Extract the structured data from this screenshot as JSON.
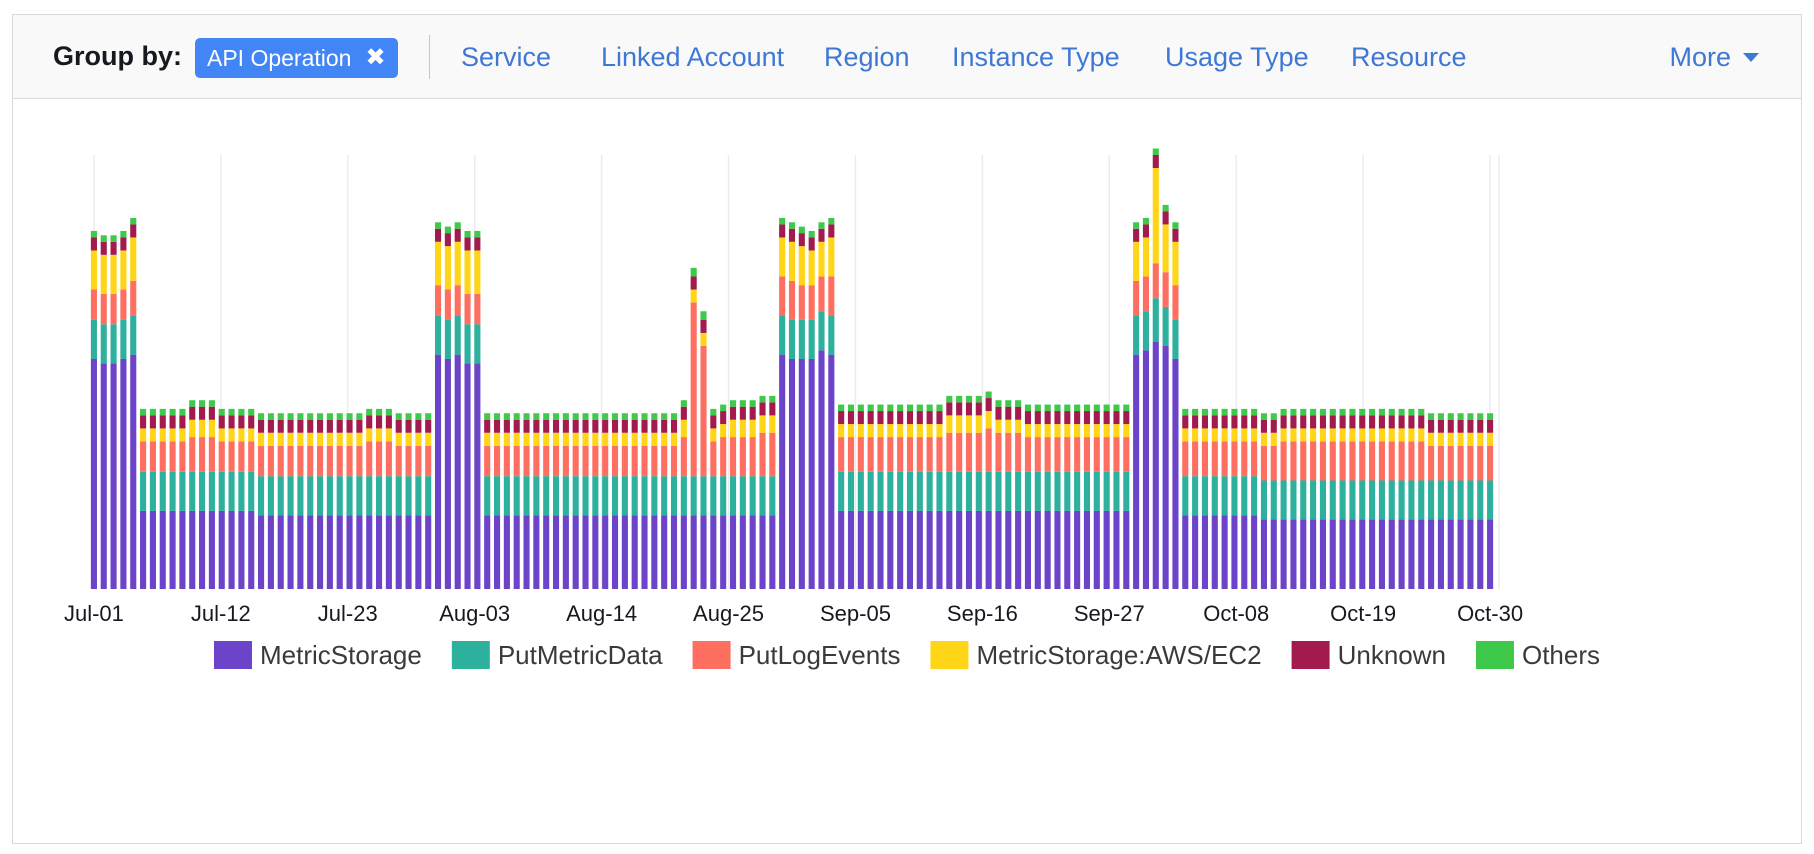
{
  "toolbar": {
    "group_label": "Group by:",
    "active_chip": "API Operation",
    "links": [
      "Service",
      "Linked Account",
      "Region",
      "Instance Type",
      "Usage Type",
      "Resource"
    ],
    "more_label": "More"
  },
  "colors": {
    "accent": "#4285f4",
    "link": "#3f78d4",
    "series": [
      "#6c44c9",
      "#2eb09e",
      "#ff6f61",
      "#ffd617",
      "#a31b4e",
      "#3ec94b"
    ]
  },
  "chart_data": {
    "type": "bar",
    "stacked": true,
    "grid": true,
    "legend_position": "bottom",
    "x_tick_labels": [
      "Jul-01",
      "Jul-12",
      "Jul-23",
      "Aug-03",
      "Aug-14",
      "Aug-25",
      "Sep-05",
      "Sep-16",
      "Sep-27",
      "Oct-08",
      "Oct-19",
      "Oct-30"
    ],
    "ylim": [
      0,
      100
    ],
    "series": [
      {
        "name": "MetricStorage",
        "color": "#6c44c9",
        "values": [
          53,
          52,
          52,
          53,
          54,
          18,
          18,
          18,
          18,
          18,
          18,
          18,
          18,
          18,
          18,
          18,
          18,
          17,
          17,
          17,
          17,
          17,
          17,
          17,
          17,
          17,
          17,
          17,
          17,
          17,
          17,
          17,
          17,
          17,
          17,
          54,
          53,
          54,
          52,
          52,
          17,
          17,
          17,
          17,
          17,
          17,
          17,
          17,
          17,
          17,
          17,
          17,
          17,
          17,
          17,
          17,
          17,
          17,
          17,
          17,
          17,
          17,
          17,
          17,
          17,
          17,
          17,
          17,
          17,
          17,
          54,
          53,
          53,
          53,
          55,
          54,
          18,
          18,
          18,
          18,
          18,
          18,
          18,
          18,
          18,
          18,
          18,
          18,
          18,
          18,
          18,
          18,
          18,
          18,
          18,
          18,
          18,
          18,
          18,
          18,
          18,
          18,
          18,
          18,
          18,
          18,
          54,
          55,
          57,
          56,
          53,
          17,
          17,
          17,
          17,
          17,
          17,
          17,
          17,
          16,
          16,
          16,
          16,
          16,
          16,
          16,
          16,
          16,
          16,
          16,
          16,
          16,
          16,
          16,
          16,
          16,
          16,
          16,
          16,
          16,
          16,
          16,
          16
        ]
      },
      {
        "name": "PutMetricData",
        "color": "#2eb09e",
        "values": [
          9,
          9,
          9,
          9,
          9,
          9,
          9,
          9,
          9,
          9,
          9,
          9,
          9,
          9,
          9,
          9,
          9,
          9,
          9,
          9,
          9,
          9,
          9,
          9,
          9,
          9,
          9,
          9,
          9,
          9,
          9,
          9,
          9,
          9,
          9,
          9,
          9,
          9,
          9,
          9,
          9,
          9,
          9,
          9,
          9,
          9,
          9,
          9,
          9,
          9,
          9,
          9,
          9,
          9,
          9,
          9,
          9,
          9,
          9,
          9,
          9,
          9,
          9,
          9,
          9,
          9,
          9,
          9,
          9,
          9,
          9,
          9,
          9,
          9,
          9,
          9,
          9,
          9,
          9,
          9,
          9,
          9,
          9,
          9,
          9,
          9,
          9,
          9,
          9,
          9,
          9,
          9,
          9,
          9,
          9,
          9,
          9,
          9,
          9,
          9,
          9,
          9,
          9,
          9,
          9,
          9,
          9,
          9,
          10,
          9,
          9,
          9,
          9,
          9,
          9,
          9,
          9,
          9,
          9,
          9,
          9,
          9,
          9,
          9,
          9,
          9,
          9,
          9,
          9,
          9,
          9,
          9,
          9,
          9,
          9,
          9,
          9,
          9,
          9,
          9,
          9,
          9,
          9
        ]
      },
      {
        "name": "PutLogEvents",
        "color": "#ff6f61",
        "values": [
          7,
          7,
          7,
          7,
          8,
          7,
          7,
          7,
          7,
          7,
          8,
          8,
          8,
          7,
          7,
          7,
          7,
          7,
          7,
          7,
          7,
          7,
          7,
          7,
          7,
          7,
          7,
          7,
          8,
          8,
          8,
          7,
          7,
          7,
          7,
          7,
          7,
          7,
          7,
          7,
          7,
          7,
          7,
          7,
          7,
          7,
          7,
          7,
          7,
          7,
          7,
          7,
          7,
          7,
          7,
          7,
          7,
          7,
          7,
          7,
          9,
          40,
          30,
          8,
          9,
          9,
          9,
          9,
          10,
          10,
          9,
          9,
          8,
          8,
          8,
          9,
          8,
          8,
          8,
          8,
          8,
          8,
          8,
          8,
          8,
          8,
          8,
          9,
          9,
          9,
          9,
          10,
          9,
          9,
          9,
          8,
          8,
          8,
          8,
          8,
          8,
          8,
          8,
          8,
          8,
          8,
          8,
          8,
          8,
          8,
          8,
          8,
          8,
          8,
          8,
          8,
          8,
          8,
          8,
          8,
          8,
          9,
          9,
          9,
          9,
          9,
          9,
          9,
          9,
          9,
          9,
          9,
          9,
          9,
          9,
          9,
          8,
          8,
          8,
          8,
          8,
          8,
          8
        ]
      },
      {
        "name": "MetricStorage:AWS/EC2",
        "color": "#ffd617",
        "values": [
          9,
          9,
          9,
          9,
          10,
          3,
          3,
          3,
          3,
          3,
          4,
          4,
          4,
          3,
          3,
          3,
          3,
          3,
          3,
          3,
          3,
          3,
          3,
          3,
          3,
          3,
          3,
          3,
          3,
          3,
          3,
          3,
          3,
          3,
          3,
          10,
          10,
          10,
          10,
          10,
          3,
          3,
          3,
          3,
          3,
          3,
          3,
          3,
          3,
          3,
          3,
          3,
          3,
          3,
          3,
          3,
          3,
          3,
          3,
          3,
          4,
          3,
          3,
          3,
          3,
          4,
          4,
          4,
          4,
          4,
          9,
          9,
          9,
          8,
          8,
          9,
          3,
          3,
          3,
          3,
          3,
          3,
          3,
          3,
          3,
          3,
          3,
          4,
          4,
          4,
          4,
          4,
          3,
          3,
          3,
          3,
          3,
          3,
          3,
          3,
          3,
          3,
          3,
          3,
          3,
          3,
          9,
          9,
          22,
          11,
          10,
          3,
          3,
          3,
          3,
          3,
          3,
          3,
          3,
          3,
          3,
          3,
          3,
          3,
          3,
          3,
          3,
          3,
          3,
          3,
          3,
          3,
          3,
          3,
          3,
          3,
          3,
          3,
          3,
          3,
          3,
          3,
          3
        ]
      },
      {
        "name": "Unknown",
        "color": "#a31b4e",
        "values": [
          3,
          3,
          3,
          3,
          3,
          3,
          3,
          3,
          3,
          3,
          3,
          3,
          3,
          3,
          3,
          3,
          3,
          3,
          3,
          3,
          3,
          3,
          3,
          3,
          3,
          3,
          3,
          3,
          3,
          3,
          3,
          3,
          3,
          3,
          3,
          3,
          3,
          3,
          3,
          3,
          3,
          3,
          3,
          3,
          3,
          3,
          3,
          3,
          3,
          3,
          3,
          3,
          3,
          3,
          3,
          3,
          3,
          3,
          3,
          3,
          3,
          3,
          3,
          3,
          3,
          3,
          3,
          3,
          3,
          3,
          3,
          3,
          3,
          3,
          3,
          3,
          3,
          3,
          3,
          3,
          3,
          3,
          3,
          3,
          3,
          3,
          3,
          3,
          3,
          3,
          3,
          3,
          3,
          3,
          3,
          3,
          3,
          3,
          3,
          3,
          3,
          3,
          3,
          3,
          3,
          3,
          3,
          3,
          3,
          3,
          3,
          3,
          3,
          3,
          3,
          3,
          3,
          3,
          3,
          3,
          3,
          3,
          3,
          3,
          3,
          3,
          3,
          3,
          3,
          3,
          3,
          3,
          3,
          3,
          3,
          3,
          3,
          3,
          3,
          3,
          3,
          3,
          3
        ]
      },
      {
        "name": "Others",
        "color": "#3ec94b",
        "values": [
          1.5,
          1.5,
          1.5,
          1.5,
          1.5,
          1.5,
          1.5,
          1.5,
          1.5,
          1.5,
          1.5,
          1.5,
          1.5,
          1.5,
          1.5,
          1.5,
          1.5,
          1.5,
          1.5,
          1.5,
          1.5,
          1.5,
          1.5,
          1.5,
          1.5,
          1.5,
          1.5,
          1.5,
          1.5,
          1.5,
          1.5,
          1.5,
          1.5,
          1.5,
          1.5,
          1.5,
          1.5,
          1.5,
          1.5,
          1.5,
          1.5,
          1.5,
          1.5,
          1.5,
          1.5,
          1.5,
          1.5,
          1.5,
          1.5,
          1.5,
          1.5,
          1.5,
          1.5,
          1.5,
          1.5,
          1.5,
          1.5,
          1.5,
          1.5,
          1.5,
          1.5,
          2,
          2,
          1.5,
          1.5,
          1.5,
          1.5,
          1.5,
          1.5,
          1.5,
          1.5,
          1.5,
          1.5,
          1.5,
          1.5,
          1.5,
          1.5,
          1.5,
          1.5,
          1.5,
          1.5,
          1.5,
          1.5,
          1.5,
          1.5,
          1.5,
          1.5,
          1.5,
          1.5,
          1.5,
          1.5,
          1.5,
          1.5,
          1.5,
          1.5,
          1.5,
          1.5,
          1.5,
          1.5,
          1.5,
          1.5,
          1.5,
          1.5,
          1.5,
          1.5,
          1.5,
          1.5,
          1.5,
          1.5,
          1.5,
          1.5,
          1.5,
          1.5,
          1.5,
          1.5,
          1.5,
          1.5,
          1.5,
          1.5,
          1.5,
          1.5,
          1.5,
          1.5,
          1.5,
          1.5,
          1.5,
          1.5,
          1.5,
          1.5,
          1.5,
          1.5,
          1.5,
          1.5,
          1.5,
          1.5,
          1.5,
          1.5,
          1.5,
          1.5,
          1.5,
          1.5,
          1.5,
          1.5
        ]
      }
    ]
  }
}
